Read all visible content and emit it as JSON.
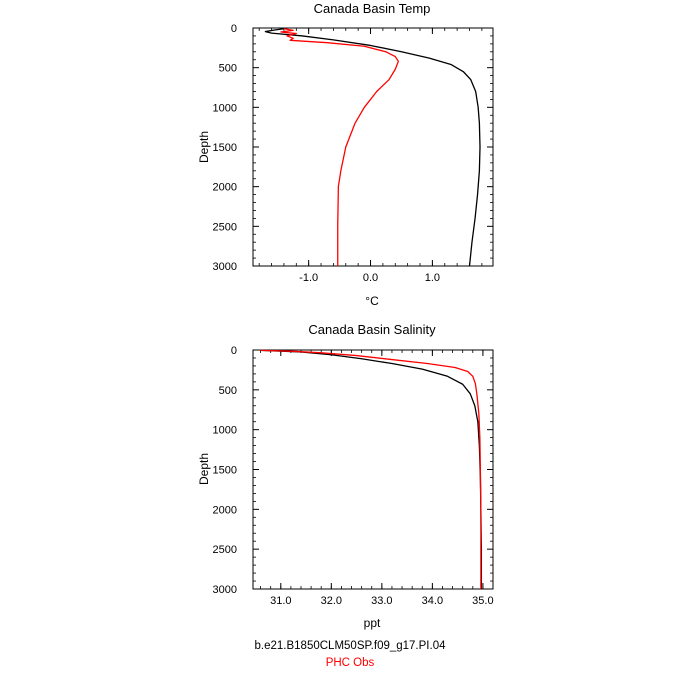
{
  "chart_data": [
    {
      "type": "line",
      "title": "Canada Basin Temp",
      "xlabel": "°C",
      "ylabel": "Depth",
      "xlim": [
        -1.9,
        1.98
      ],
      "ylim": [
        3000,
        0
      ],
      "y_reversed": true,
      "xticks": [
        -1.0,
        0.0,
        1.0
      ],
      "xtick_labels": [
        "-1.0",
        "0.0",
        "1.0"
      ],
      "yticks": [
        0,
        500,
        1000,
        1500,
        2000,
        2500,
        3000
      ],
      "ytick_labels": [
        "0",
        "500",
        "1000",
        "1500",
        "2000",
        "2500",
        "3000"
      ],
      "grid": false,
      "series": [
        {
          "name": "b.e21.B1850CLM50SP.f09_g17.PI.04",
          "color": "#000000",
          "points": [
            [
              -1.4,
              10
            ],
            [
              -1.55,
              25
            ],
            [
              -1.7,
              45
            ],
            [
              -1.6,
              65
            ],
            [
              -1.1,
              100
            ],
            [
              -0.6,
              150
            ],
            [
              0.0,
              220
            ],
            [
              0.5,
              300
            ],
            [
              0.95,
              380
            ],
            [
              1.3,
              460
            ],
            [
              1.5,
              550
            ],
            [
              1.62,
              650
            ],
            [
              1.7,
              800
            ],
            [
              1.74,
              1000
            ],
            [
              1.76,
              1200
            ],
            [
              1.77,
              1500
            ],
            [
              1.76,
              1800
            ],
            [
              1.73,
              2100
            ],
            [
              1.69,
              2400
            ],
            [
              1.64,
              2700
            ],
            [
              1.6,
              3000
            ]
          ]
        },
        {
          "name": "PHC Obs",
          "color": "#ff0000",
          "points": [
            [
              -1.4,
              10
            ],
            [
              -1.25,
              30
            ],
            [
              -1.45,
              50
            ],
            [
              -1.2,
              70
            ],
            [
              -1.35,
              100
            ],
            [
              -1.25,
              130
            ],
            [
              -1.3,
              155
            ],
            [
              -0.7,
              185
            ],
            [
              -0.1,
              230
            ],
            [
              0.25,
              300
            ],
            [
              0.4,
              360
            ],
            [
              0.45,
              420
            ],
            [
              0.4,
              520
            ],
            [
              0.3,
              650
            ],
            [
              0.1,
              800
            ],
            [
              -0.1,
              1000
            ],
            [
              -0.25,
              1200
            ],
            [
              -0.4,
              1500
            ],
            [
              -0.48,
              1800
            ],
            [
              -0.52,
              2000
            ],
            [
              -0.53,
              2500
            ],
            [
              -0.53,
              3000
            ]
          ]
        }
      ]
    },
    {
      "type": "line",
      "title": "Canada Basin Salinity",
      "xlabel": "ppt",
      "ylabel": "Depth",
      "xlim": [
        30.45,
        35.2
      ],
      "ylim": [
        3000,
        0
      ],
      "y_reversed": true,
      "xticks": [
        31.0,
        32.0,
        33.0,
        34.0,
        35.0
      ],
      "xtick_labels": [
        "31.0",
        "32.0",
        "33.0",
        "34.0",
        "35.0"
      ],
      "yticks": [
        0,
        500,
        1000,
        1500,
        2000,
        2500,
        3000
      ],
      "ytick_labels": [
        "0",
        "500",
        "1000",
        "1500",
        "2000",
        "2500",
        "3000"
      ],
      "grid": false,
      "series": [
        {
          "name": "b.e21.B1850CLM50SP.f09_g17.PI.04",
          "color": "#000000",
          "points": [
            [
              30.6,
              5
            ],
            [
              31.4,
              25
            ],
            [
              32.0,
              60
            ],
            [
              32.6,
              110
            ],
            [
              33.2,
              170
            ],
            [
              33.8,
              240
            ],
            [
              34.3,
              330
            ],
            [
              34.6,
              430
            ],
            [
              34.75,
              550
            ],
            [
              34.84,
              700
            ],
            [
              34.9,
              900
            ],
            [
              34.93,
              1200
            ],
            [
              34.95,
              1600
            ],
            [
              34.96,
              2000
            ],
            [
              34.97,
              2500
            ],
            [
              34.97,
              3000
            ]
          ]
        },
        {
          "name": "PHC Obs",
          "color": "#ff0000",
          "points": [
            [
              30.6,
              5
            ],
            [
              31.2,
              15
            ],
            [
              31.8,
              35
            ],
            [
              32.5,
              70
            ],
            [
              33.2,
              120
            ],
            [
              33.9,
              170
            ],
            [
              34.45,
              220
            ],
            [
              34.7,
              270
            ],
            [
              34.8,
              330
            ],
            [
              34.85,
              420
            ],
            [
              34.88,
              550
            ],
            [
              34.92,
              800
            ],
            [
              34.94,
              1100
            ],
            [
              34.95,
              1500
            ],
            [
              34.96,
              2000
            ],
            [
              34.96,
              3000
            ]
          ]
        }
      ]
    }
  ],
  "legend": {
    "model_run": "b.e21.B1850CLM50SP.f09_g17.PI.04",
    "observations": "PHC Obs",
    "model_color": "#000000",
    "obs_color": "#ff0000"
  }
}
